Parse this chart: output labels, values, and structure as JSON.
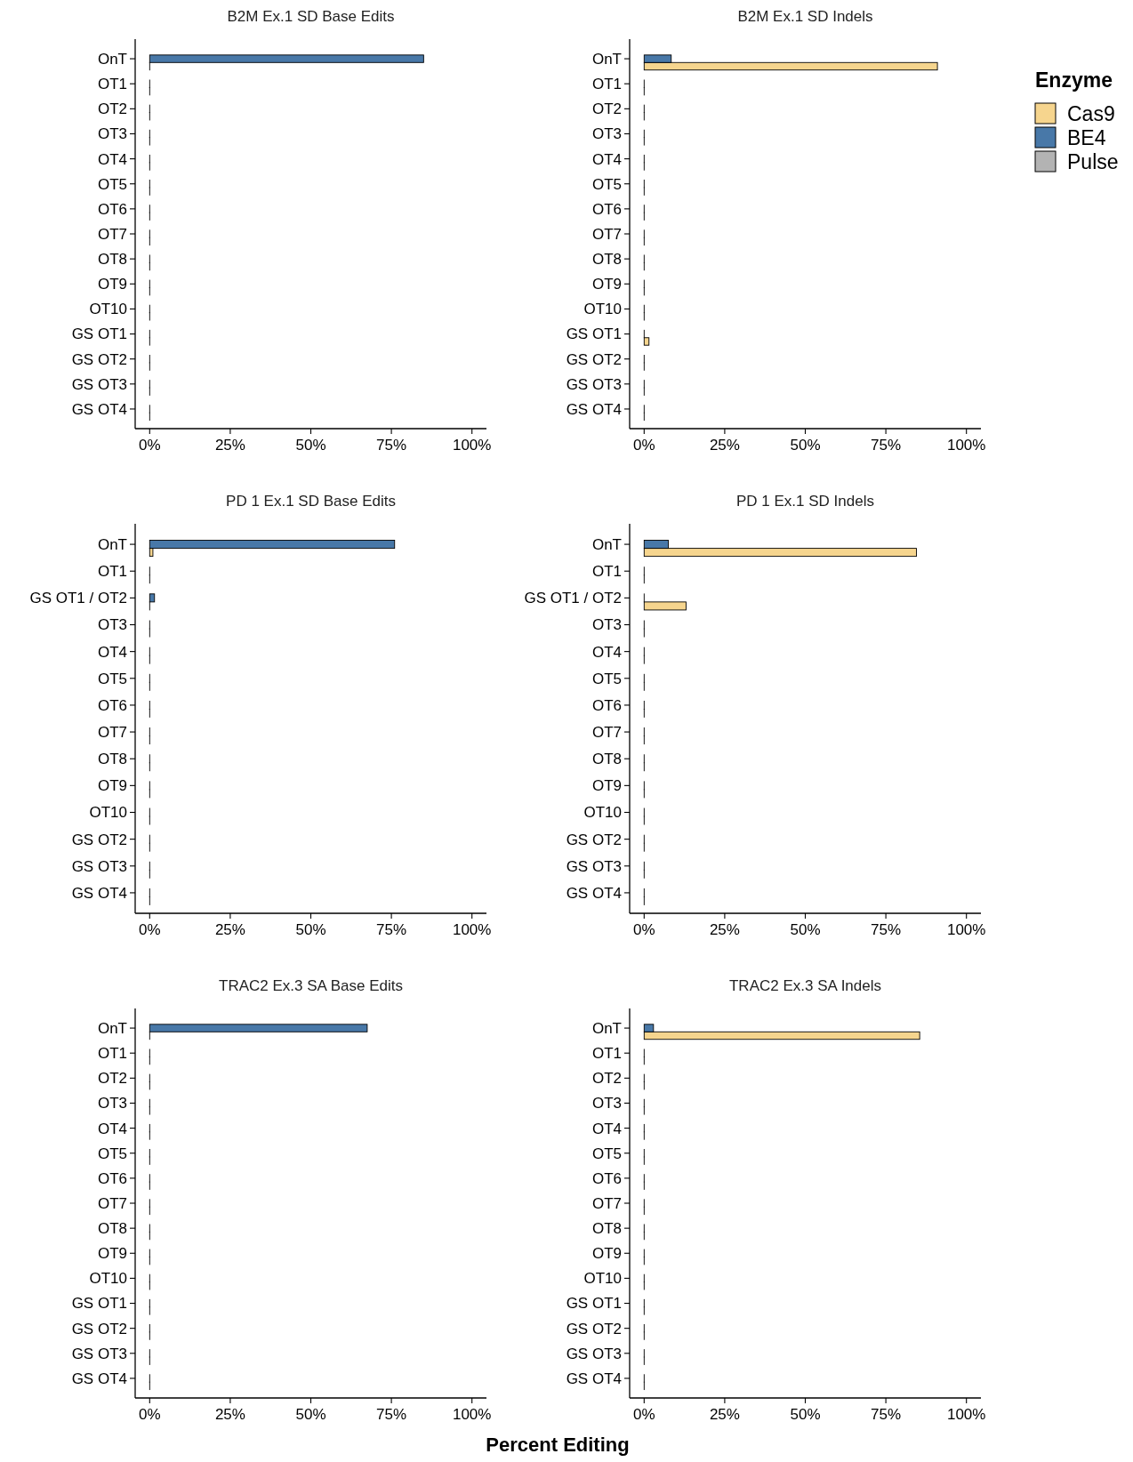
{
  "chart_data": [
    {
      "type": "bar",
      "orientation": "horizontal",
      "title": "B2M Ex.1 SD Base Edits",
      "categories": [
        "OnT",
        "OT1",
        "OT2",
        "OT3",
        "OT4",
        "OT5",
        "OT6",
        "OT7",
        "OT8",
        "OT9",
        "OT10",
        "GS OT1",
        "GS OT2",
        "GS OT3",
        "GS OT4"
      ],
      "series": [
        {
          "color": "#f6d58e",
          "values": [
            0,
            0,
            0,
            0,
            0,
            0,
            0,
            0,
            0,
            0,
            0,
            0,
            0,
            0,
            0
          ]
        },
        {
          "color": "#4878a8",
          "values": [
            85,
            0,
            0,
            0,
            0,
            0,
            0,
            0,
            0,
            0,
            0,
            0,
            0,
            0,
            0
          ]
        }
      ],
      "xlim": [
        -4.5,
        104.5
      ],
      "xticks": [
        {
          "value": 0,
          "label": "0%"
        },
        {
          "value": 25,
          "label": "25%"
        },
        {
          "value": 50,
          "label": "50%"
        },
        {
          "value": 75,
          "label": "75%"
        },
        {
          "value": 100,
          "label": "100%"
        }
      ]
    },
    {
      "type": "bar",
      "orientation": "horizontal",
      "title": "B2M Ex.1 SD Indels",
      "legend": "right",
      "legend_title": "Enzyme",
      "categories": [
        "OnT",
        "OT1",
        "OT2",
        "OT3",
        "OT4",
        "OT5",
        "OT6",
        "OT7",
        "OT8",
        "OT9",
        "OT10",
        "GS OT1",
        "GS OT2",
        "GS OT3",
        "GS OT4"
      ],
      "series": [
        {
          "name": "Cas9",
          "color": "#f6d58e",
          "values": [
            91,
            0,
            0,
            0,
            0,
            0,
            0,
            0,
            0,
            0,
            0,
            1.5,
            0,
            0,
            0
          ]
        },
        {
          "name": "BE4",
          "color": "#4878a8",
          "values": [
            8.4,
            0,
            0,
            0,
            0,
            0,
            0,
            0,
            0,
            0,
            0,
            0,
            0,
            0,
            0
          ]
        },
        {
          "name": "Pulse",
          "color": "#b3b3b3",
          "values": [
            null,
            null,
            null,
            null,
            null,
            null,
            null,
            null,
            null,
            null,
            null,
            null,
            null,
            null,
            null
          ]
        }
      ],
      "xlim": [
        -4.5,
        104.5
      ],
      "xticks": [
        {
          "value": 0,
          "label": "0%"
        },
        {
          "value": 25,
          "label": "25%"
        },
        {
          "value": 50,
          "label": "50%"
        },
        {
          "value": 75,
          "label": "75%"
        },
        {
          "value": 100,
          "label": "100%"
        }
      ]
    },
    {
      "type": "bar",
      "orientation": "horizontal",
      "title": "PD 1 Ex.1 SD Base Edits",
      "categories": [
        "OnT",
        "OT1",
        "GS OT1 / OT2",
        "OT3",
        "OT4",
        "OT5",
        "OT6",
        "OT7",
        "OT8",
        "OT9",
        "OT10",
        "GS OT2",
        "GS OT3",
        "GS OT4"
      ],
      "series": [
        {
          "color": "#f6d58e",
          "values": [
            1,
            0,
            0,
            0,
            0,
            0,
            0,
            0,
            0,
            0,
            0,
            0,
            0,
            0
          ]
        },
        {
          "color": "#4878a8",
          "values": [
            76,
            0,
            1.5,
            0,
            0,
            0,
            0,
            0,
            0,
            0,
            0,
            0,
            0,
            0
          ]
        }
      ],
      "xlim": [
        -4.5,
        104.5
      ],
      "xticks": [
        {
          "value": 0,
          "label": "0%"
        },
        {
          "value": 25,
          "label": "25%"
        },
        {
          "value": 50,
          "label": "50%"
        },
        {
          "value": 75,
          "label": "75%"
        },
        {
          "value": 100,
          "label": "100%"
        }
      ]
    },
    {
      "type": "bar",
      "orientation": "horizontal",
      "title": "PD 1 Ex.1 SD Indels",
      "categories": [
        "OnT",
        "OT1",
        "GS OT1 / OT2",
        "OT3",
        "OT4",
        "OT5",
        "OT6",
        "OT7",
        "OT8",
        "OT9",
        "OT10",
        "GS OT2",
        "GS OT3",
        "GS OT4"
      ],
      "series": [
        {
          "color": "#f6d58e",
          "values": [
            84.5,
            0,
            13,
            0,
            0,
            0,
            0,
            0,
            0,
            0,
            0,
            0,
            0,
            0
          ]
        },
        {
          "color": "#4878a8",
          "values": [
            7.5,
            0,
            0,
            0,
            0,
            0,
            0,
            0,
            0,
            0,
            0,
            0,
            0,
            0
          ]
        }
      ],
      "xlim": [
        -4.5,
        104.5
      ],
      "xticks": [
        {
          "value": 0,
          "label": "0%"
        },
        {
          "value": 25,
          "label": "25%"
        },
        {
          "value": 50,
          "label": "50%"
        },
        {
          "value": 75,
          "label": "75%"
        },
        {
          "value": 100,
          "label": "100%"
        }
      ]
    },
    {
      "type": "bar",
      "orientation": "horizontal",
      "title": "TRAC2 Ex.3 SA Base Edits",
      "categories": [
        "OnT",
        "OT1",
        "OT2",
        "OT3",
        "OT4",
        "OT5",
        "OT6",
        "OT7",
        "OT8",
        "OT9",
        "OT10",
        "GS OT1",
        "GS OT2",
        "GS OT3",
        "GS OT4"
      ],
      "series": [
        {
          "color": "#f6d58e",
          "values": [
            0,
            0,
            0,
            0,
            0,
            0,
            0,
            0,
            0,
            0,
            0,
            0,
            0,
            0,
            0
          ]
        },
        {
          "color": "#4878a8",
          "values": [
            67.5,
            0,
            0,
            0,
            0,
            0,
            0,
            0,
            0,
            0,
            0,
            0,
            0,
            0,
            0
          ]
        }
      ],
      "xlim": [
        -4.5,
        104.5
      ],
      "xticks": [
        {
          "value": 0,
          "label": "0%"
        },
        {
          "value": 25,
          "label": "25%"
        },
        {
          "value": 50,
          "label": "50%"
        },
        {
          "value": 75,
          "label": "75%"
        },
        {
          "value": 100,
          "label": "100%"
        }
      ]
    },
    {
      "type": "bar",
      "orientation": "horizontal",
      "title": "TRAC2 Ex.3 SA Indels",
      "xlabel": "Percent Editing",
      "categories": [
        "OnT",
        "OT1",
        "OT2",
        "OT3",
        "OT4",
        "OT5",
        "OT6",
        "OT7",
        "OT8",
        "OT9",
        "OT10",
        "GS OT1",
        "GS OT2",
        "GS OT3",
        "GS OT4"
      ],
      "series": [
        {
          "color": "#f6d58e",
          "values": [
            85.5,
            0,
            0,
            0,
            0,
            0,
            0,
            0,
            0,
            0,
            0,
            0,
            0,
            0,
            0
          ]
        },
        {
          "color": "#4878a8",
          "values": [
            2.9,
            0,
            0,
            0,
            0,
            0,
            0,
            0,
            0,
            0,
            0,
            0,
            0,
            0,
            0
          ]
        }
      ],
      "xlim": [
        -4.5,
        104.5
      ],
      "xticks": [
        {
          "value": 0,
          "label": "0%"
        },
        {
          "value": 25,
          "label": "25%"
        },
        {
          "value": 50,
          "label": "50%"
        },
        {
          "value": 75,
          "label": "75%"
        },
        {
          "value": 100,
          "label": "100%"
        }
      ]
    }
  ]
}
